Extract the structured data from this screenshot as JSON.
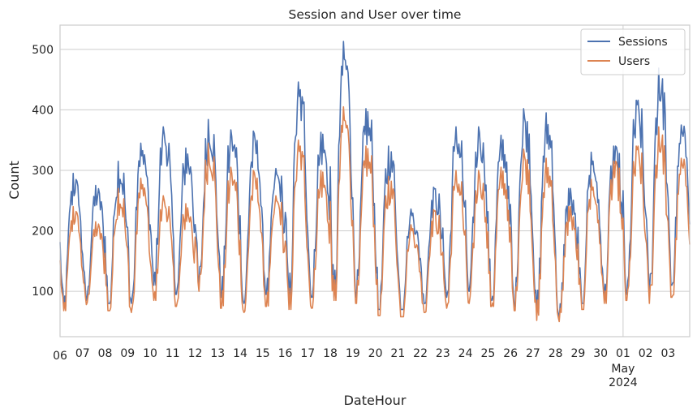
{
  "chart_data": {
    "type": "line",
    "title": "Session and User over time",
    "xlabel": "DateHour",
    "ylabel": "Count",
    "x_start": "2024-04-06 00:00",
    "x_end": "2024-05-03 23:00",
    "ylim": [
      25,
      540
    ],
    "yticks": [
      100,
      200,
      300,
      400,
      500
    ],
    "xtick_labels": [
      "06",
      "07",
      "08",
      "09",
      "10",
      "11",
      "12",
      "13",
      "14",
      "15",
      "16",
      "17",
      "18",
      "19",
      "20",
      "21",
      "22",
      "23",
      "24",
      "25",
      "26",
      "27",
      "28",
      "29",
      "30",
      "01",
      "02",
      "03"
    ],
    "month_label": "May",
    "year_label": "2024",
    "grid": true,
    "legend_position": "top-right",
    "daily_dates": [
      "2024-04-06",
      "2024-04-07",
      "2024-04-08",
      "2024-04-09",
      "2024-04-10",
      "2024-04-11",
      "2024-04-12",
      "2024-04-13",
      "2024-04-14",
      "2024-04-15",
      "2024-04-16",
      "2024-04-17",
      "2024-04-18",
      "2024-04-19",
      "2024-04-20",
      "2024-04-21",
      "2024-04-22",
      "2024-04-23",
      "2024-04-24",
      "2024-04-25",
      "2024-04-26",
      "2024-04-27",
      "2024-04-28",
      "2024-04-29",
      "2024-04-30",
      "2024-05-01",
      "2024-05-02",
      "2024-05-03"
    ],
    "series": [
      {
        "name": "Sessions",
        "color": "#4c72b0",
        "daily_min": [
          75,
          85,
          80,
          80,
          110,
          95,
          110,
          90,
          80,
          95,
          85,
          90,
          90,
          90,
          70,
          70,
          80,
          90,
          100,
          85,
          75,
          60,
          55,
          80,
          90,
          95,
          90,
          110
        ],
        "daily_max": [
          295,
          275,
          315,
          345,
          372,
          337,
          384,
          367,
          365,
          303,
          446,
          363,
          513,
          402,
          340,
          236,
          272,
          372,
          372,
          358,
          402,
          395,
          270,
          330,
          340,
          416,
          469,
          375
        ]
      },
      {
        "name": "Users",
        "color": "#dd8452",
        "daily_min": [
          68,
          78,
          68,
          65,
          85,
          75,
          100,
          72,
          65,
          75,
          70,
          72,
          85,
          80,
          60,
          58,
          65,
          72,
          80,
          75,
          68,
          52,
          50,
          70,
          80,
          85,
          80,
          90
        ],
        "daily_max": [
          240,
          215,
          270,
          287,
          258,
          245,
          345,
          305,
          300,
          258,
          350,
          300,
          405,
          340,
          290,
          210,
          235,
          300,
          300,
          305,
          335,
          320,
          240,
          285,
          315,
          340,
          372,
          320
        ]
      }
    ]
  }
}
